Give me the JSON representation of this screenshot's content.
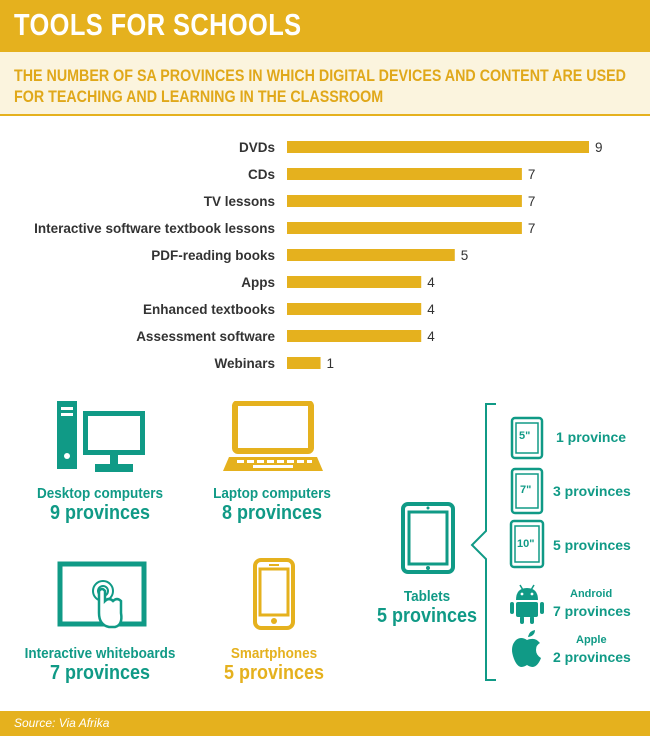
{
  "header": {
    "title": "TOOLS FOR SCHOOLS",
    "subtitle": "THE NUMBER OF SA PROVINCES IN WHICH DIGITAL DEVICES AND CONTENT ARE USED FOR TEACHING AND LEARNING IN THE CLASSROOM"
  },
  "chart_data": {
    "type": "bar",
    "orientation": "horizontal",
    "categories": [
      "DVDs",
      "CDs",
      "TV lessons",
      "Interactive software textbook lessons",
      "PDF-reading books",
      "Apps",
      "Enhanced textbooks",
      "Assessment software",
      "Webinars"
    ],
    "values": [
      9,
      7,
      7,
      7,
      5,
      4,
      4,
      4,
      1
    ],
    "value_labels": [
      "9",
      "7",
      "7",
      "7",
      "5",
      "4",
      "4",
      "4",
      "1"
    ],
    "xlim": [
      0,
      9
    ],
    "grid": false,
    "bar_color": "#E5B11E"
  },
  "devices": {
    "desktop": {
      "name": "Desktop computers",
      "count": "9 provinces",
      "icon": "desktop-computer-icon"
    },
    "laptop": {
      "name": "Laptop computers",
      "count": "8 provinces",
      "icon": "laptop-icon"
    },
    "whiteboard": {
      "name": "Interactive whiteboards",
      "count": "7 provinces",
      "icon": "interactive-whiteboard-icon"
    },
    "smartphone": {
      "name": "Smartphones",
      "count": "5 provinces",
      "icon": "smartphone-icon"
    },
    "tablet": {
      "name": "Tablets",
      "count": "5 provinces",
      "icon": "tablet-icon"
    }
  },
  "tablets": [
    {
      "size": "5\"",
      "label": "1 province"
    },
    {
      "size": "7\"",
      "label": "3 provinces"
    },
    {
      "size": "10\"",
      "label": "5 provinces"
    },
    {
      "name": "Android",
      "label": "7 provinces",
      "icon": "android-icon"
    },
    {
      "name": "Apple",
      "label": "2 provinces",
      "icon": "apple-icon"
    }
  ],
  "colors": {
    "gold": "#E5B11E",
    "teal": "#109A86",
    "band": "#FBF4DE"
  },
  "footer": {
    "source": "Source: Via Afrika"
  }
}
